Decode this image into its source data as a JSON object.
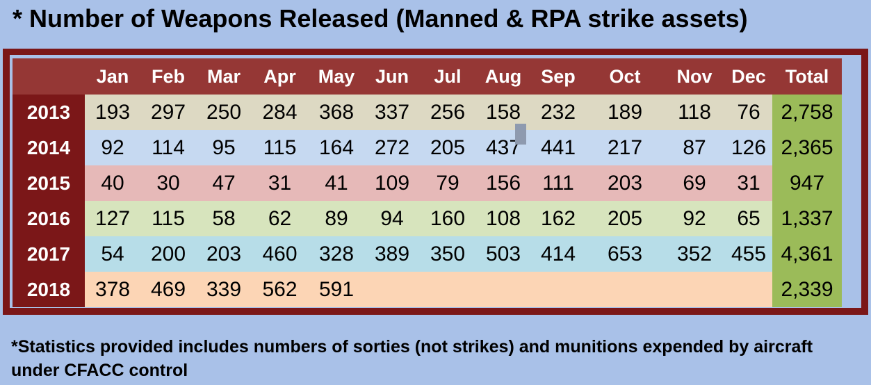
{
  "title": "* Number of Weapons Released (Manned & RPA strike assets)",
  "footnote": "*Statistics provided includes numbers of sorties (not strikes) and munitions expended by aircraft under CFACC control",
  "colors": {
    "background": "#a9c1e8",
    "frame": "#7b1718",
    "header": "#953735",
    "total_column": "#9bbb59",
    "row_2013": "#ddd9c3",
    "row_2014": "#c6d9f1",
    "row_2015": "#e6b9b8",
    "row_2016": "#d7e4bd",
    "row_2017": "#b7dde8",
    "row_2018": "#fcd5b5"
  },
  "chart_data": {
    "type": "table",
    "columns": [
      "",
      "Jan",
      "Feb",
      "Mar",
      "Apr",
      "May",
      "Jun",
      "Jul",
      "Aug",
      "Sep",
      "Oct",
      "Nov",
      "Dec",
      "Total"
    ],
    "rows": [
      {
        "year": "2013",
        "values": [
          "193",
          "297",
          "250",
          "284",
          "368",
          "337",
          "256",
          "158",
          "232",
          "189",
          "118",
          "76"
        ],
        "total": "2,758"
      },
      {
        "year": "2014",
        "values": [
          "92",
          "114",
          "95",
          "115",
          "164",
          "272",
          "205",
          "437",
          "441",
          "217",
          "87",
          "126"
        ],
        "total": "2,365"
      },
      {
        "year": "2015",
        "values": [
          "40",
          "30",
          "47",
          "31",
          "41",
          "109",
          "79",
          "156",
          "111",
          "203",
          "69",
          "31"
        ],
        "total": "947"
      },
      {
        "year": "2016",
        "values": [
          "127",
          "115",
          "58",
          "62",
          "89",
          "94",
          "160",
          "108",
          "162",
          "205",
          "92",
          "65"
        ],
        "total": "1,337"
      },
      {
        "year": "2017",
        "values": [
          "54",
          "200",
          "203",
          "460",
          "328",
          "389",
          "350",
          "503",
          "414",
          "653",
          "352",
          "455"
        ],
        "total": "4,361"
      },
      {
        "year": "2018",
        "values": [
          "378",
          "469",
          "339",
          "562",
          "591",
          "",
          "",
          "",
          "",
          "",
          "",
          ""
        ],
        "total": "2,339"
      }
    ]
  }
}
